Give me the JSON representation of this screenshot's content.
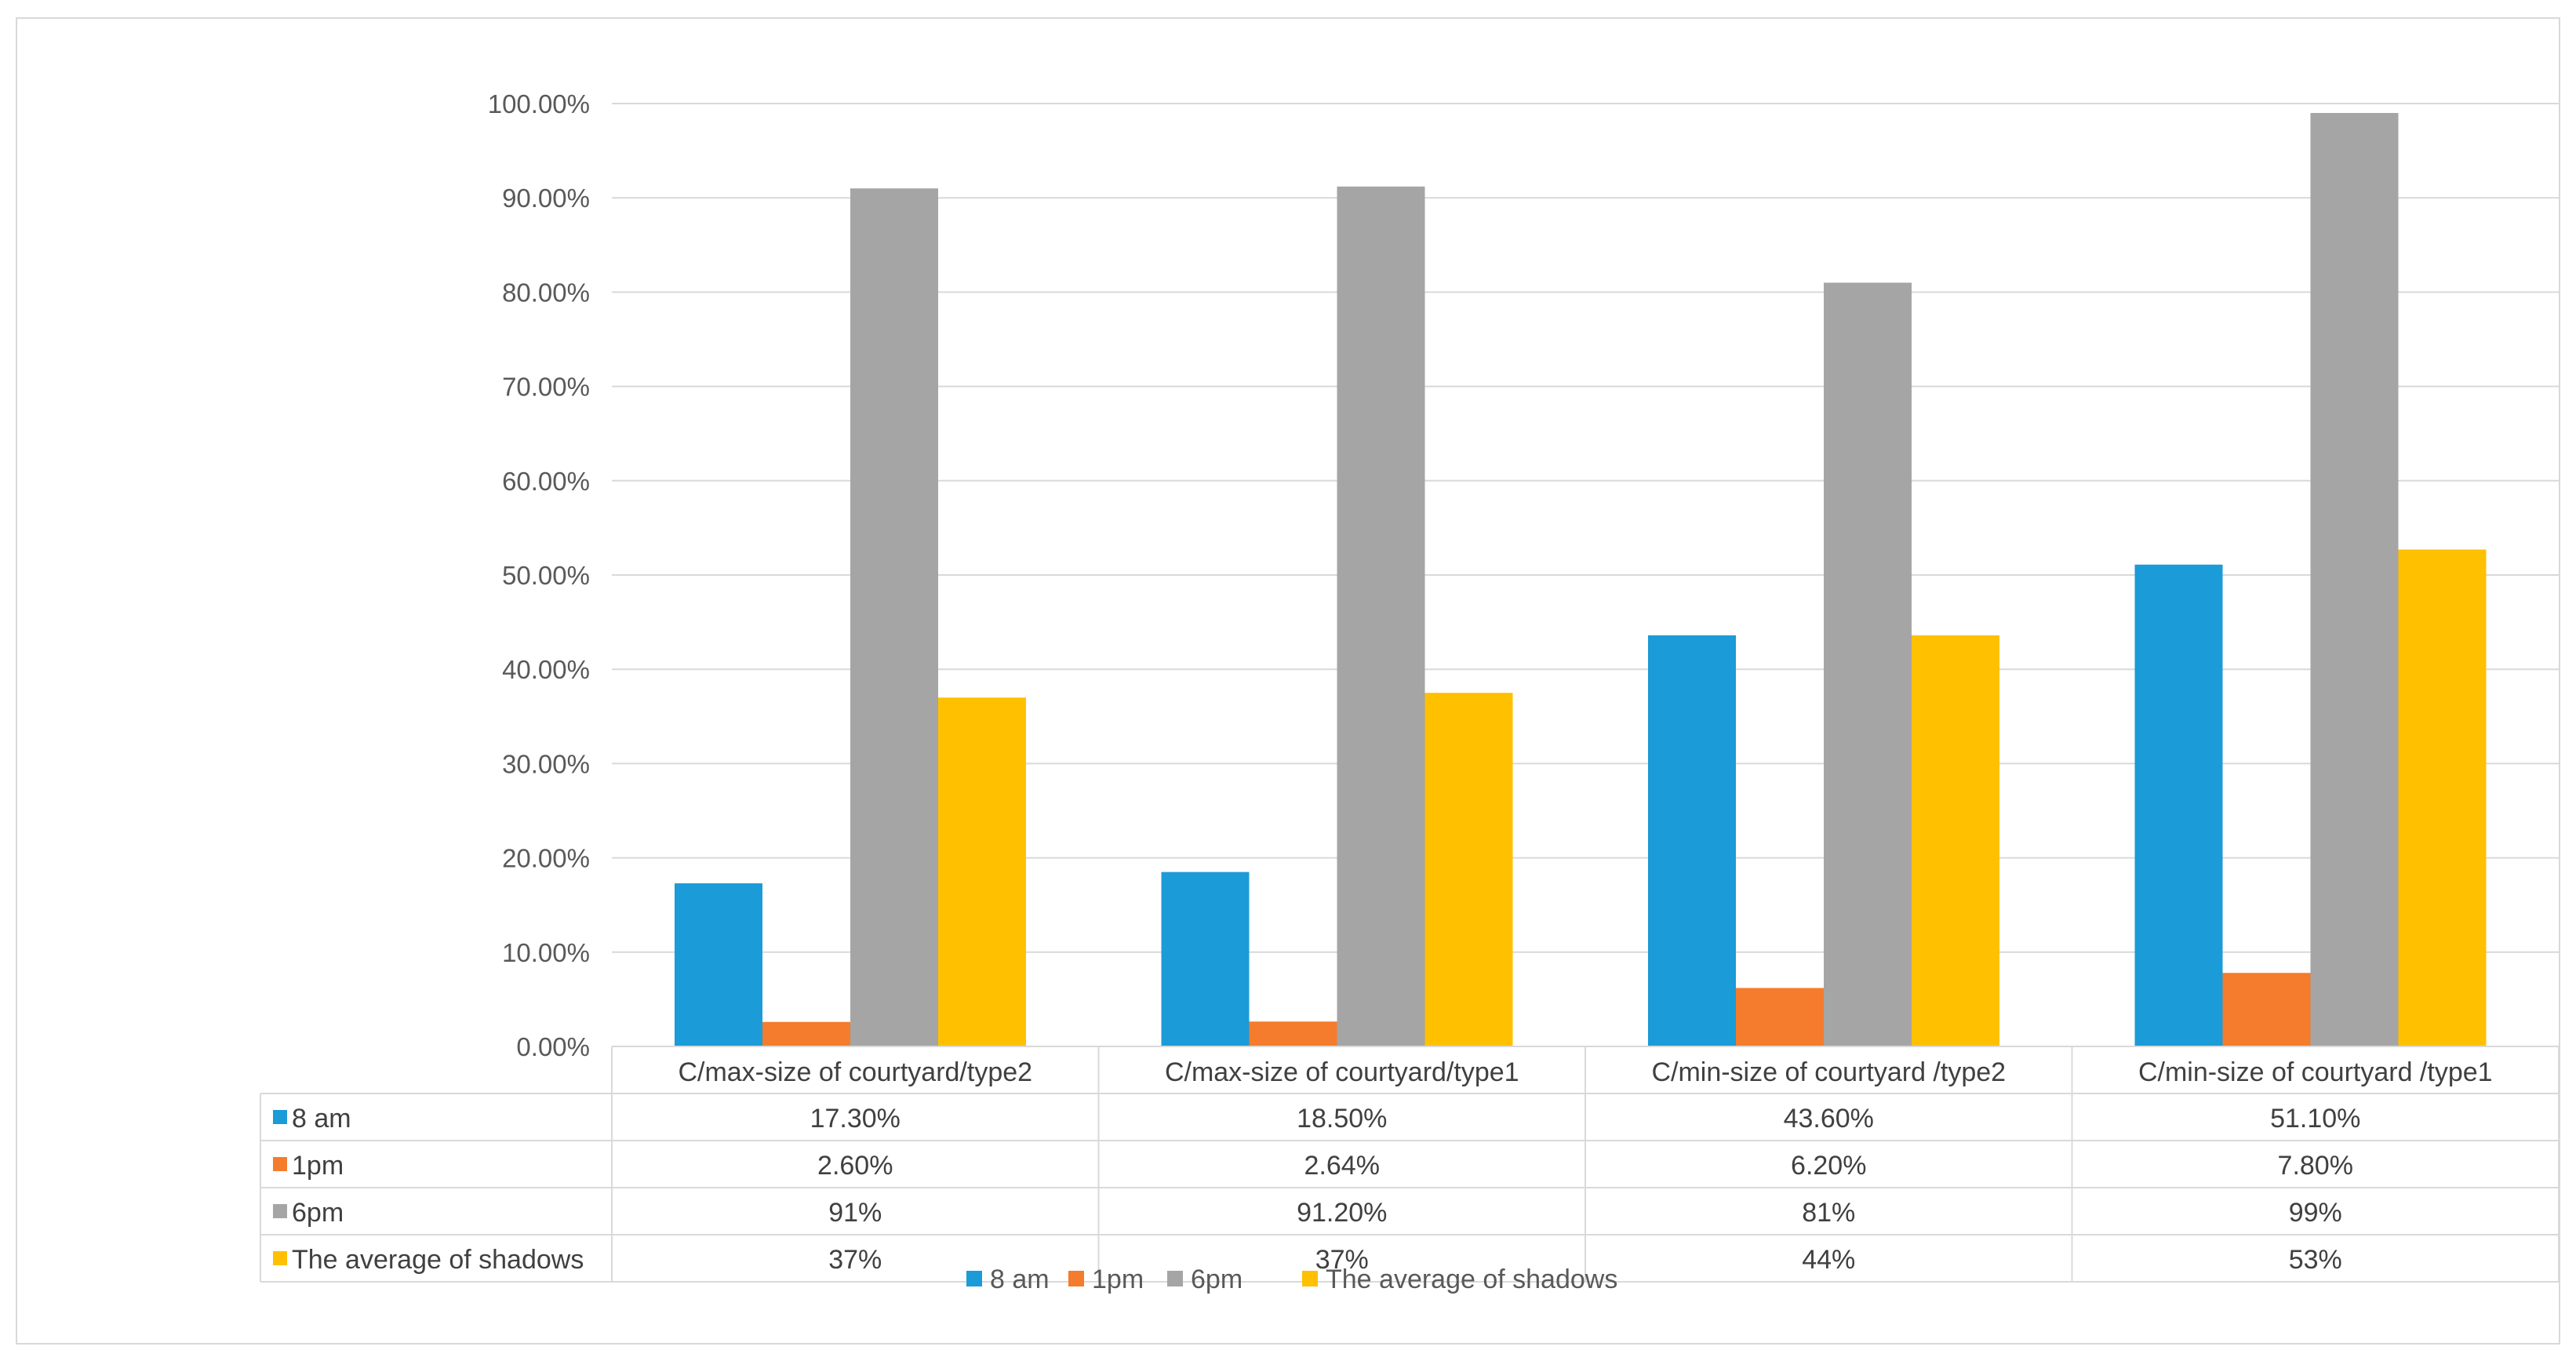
{
  "chart_data": {
    "type": "bar",
    "title": "",
    "xlabel": "",
    "ylabel": "",
    "ylim": [
      0,
      100
    ],
    "y_ticks": [
      "0.00%",
      "10.00%",
      "20.00%",
      "30.00%",
      "40.00%",
      "50.00%",
      "60.00%",
      "70.00%",
      "80.00%",
      "90.00%",
      "100.00%"
    ],
    "grid": true,
    "legend_position": "bottom",
    "categories": [
      "C/max-size of courtyard/type2",
      "C/max-size of courtyard/type1",
      "C/min-size of courtyard /type2",
      "C/min-size of courtyard /type1"
    ],
    "series": [
      {
        "name": "8 am",
        "table_label": "8 am",
        "color": "#1b9bd7",
        "values": [
          17.3,
          18.5,
          43.6,
          51.1
        ],
        "table": [
          "17.30%",
          "18.50%",
          "43.60%",
          "51.10%"
        ]
      },
      {
        "name": "1pm",
        "table_label": "1pm",
        "color": "#f47c2c",
        "values": [
          2.6,
          2.64,
          6.2,
          7.8
        ],
        "table": [
          "2.60%",
          "2.64%",
          "6.20%",
          "7.80%"
        ]
      },
      {
        "name": "6pm",
        "table_label": " 6pm",
        "color": "#a5a5a5",
        "values": [
          91,
          91.2,
          81,
          99
        ],
        "table": [
          "91%",
          "91.20%",
          "81%",
          "99%"
        ]
      },
      {
        "name": "The average of shadows",
        "table_label": "The average of shadows",
        "color": "#ffc000",
        "values": [
          37,
          37.5,
          43.6,
          52.7
        ],
        "table": [
          "37%",
          "37%",
          "44%",
          "53%"
        ]
      }
    ]
  }
}
